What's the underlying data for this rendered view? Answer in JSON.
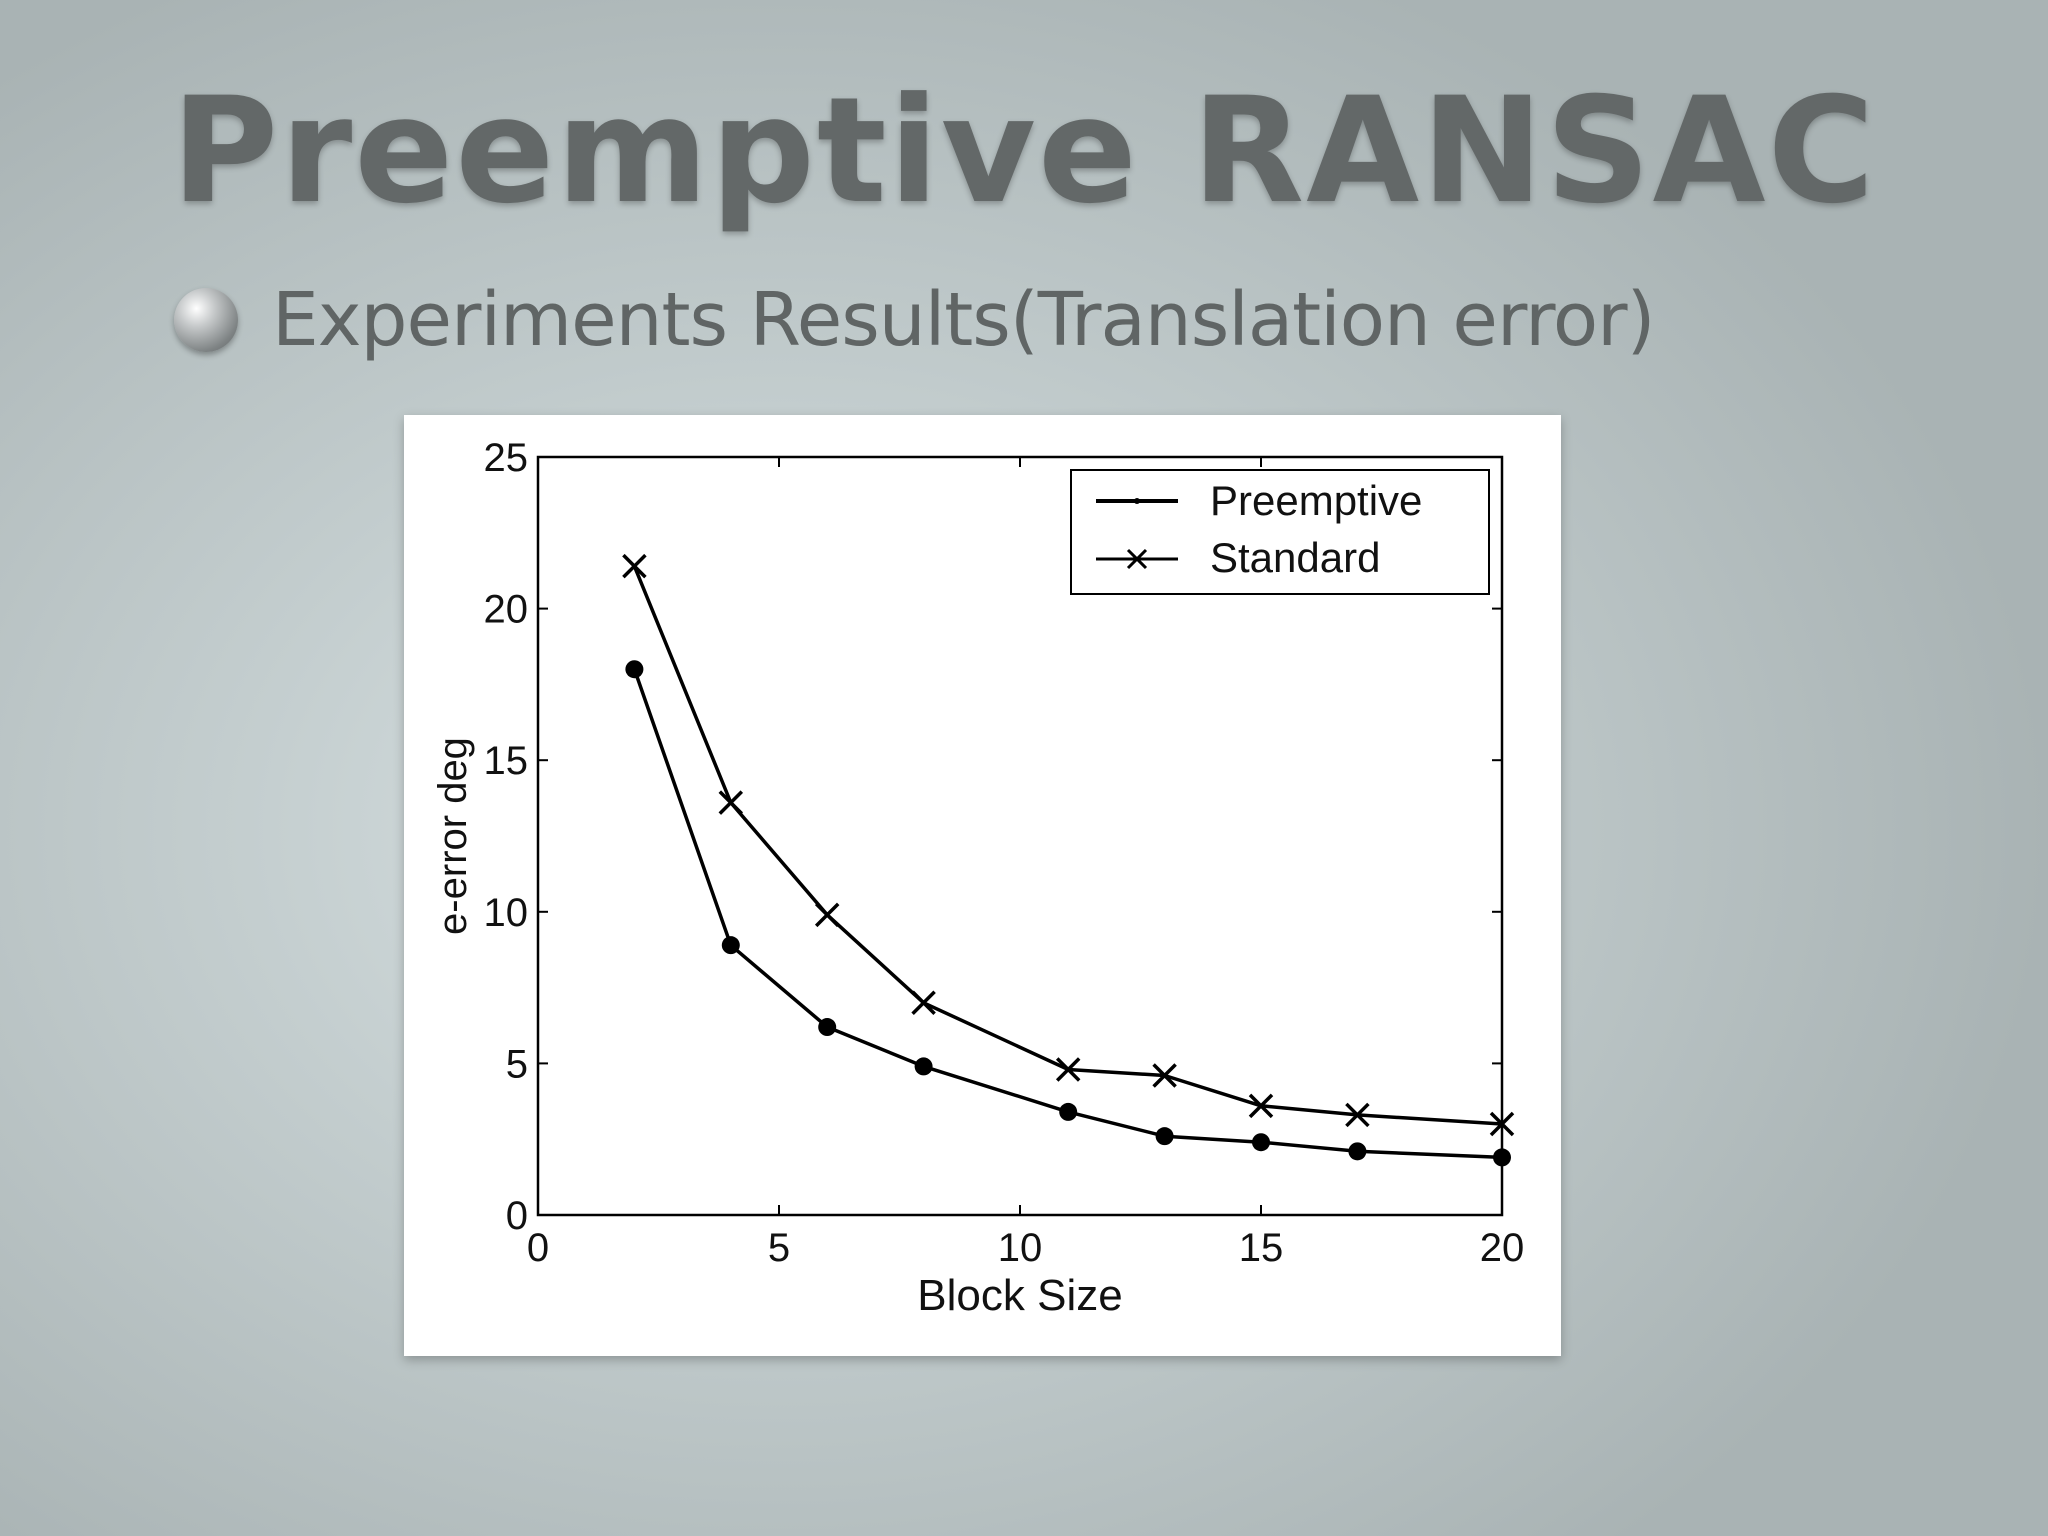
{
  "slide": {
    "title": "Preemptive RANSAC",
    "bullet": "Experiments Results(Translation error)"
  },
  "colors": {
    "title": "#636868",
    "bullet_text": "#606565",
    "series_line": "#000000"
  },
  "chart_data": {
    "type": "line",
    "title": "",
    "xlabel": "Block Size",
    "ylabel": "e-error deg",
    "xlim": [
      0,
      20
    ],
    "ylim": [
      0,
      25
    ],
    "xticks": [
      0,
      5,
      10,
      15,
      20
    ],
    "yticks": [
      0,
      5,
      10,
      15,
      20,
      25
    ],
    "grid": false,
    "legend": "top-right",
    "series": [
      {
        "name": "Preemptive",
        "marker": "dot",
        "x": [
          2,
          4,
          6,
          8,
          11,
          13,
          15,
          17,
          20
        ],
        "y": [
          18,
          8.9,
          6.2,
          4.9,
          3.4,
          2.6,
          2.4,
          2.1,
          1.9
        ]
      },
      {
        "name": "Standard",
        "marker": "x",
        "x": [
          2,
          4,
          6,
          8,
          11,
          13,
          15,
          17,
          20
        ],
        "y": [
          21.4,
          13.6,
          9.9,
          7,
          4.8,
          4.6,
          3.6,
          3.3,
          3
        ]
      }
    ]
  }
}
